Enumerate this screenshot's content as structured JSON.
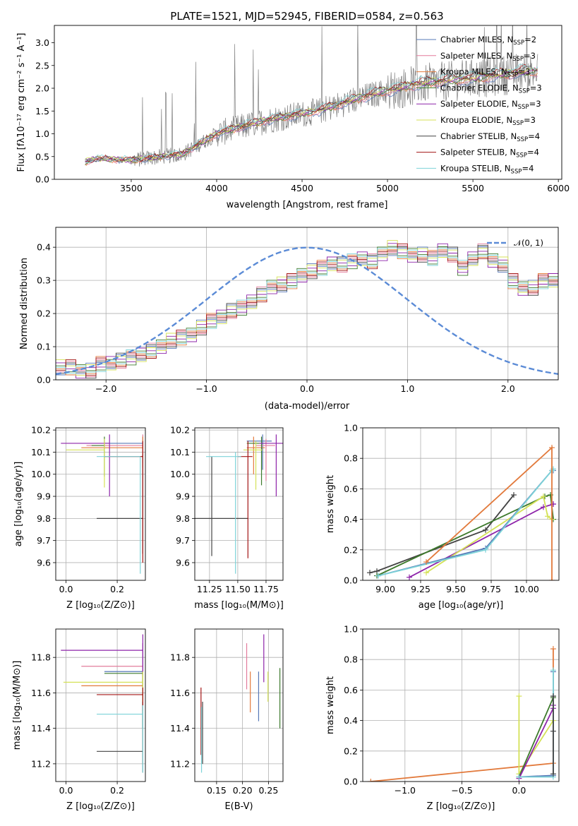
{
  "chart_data": [
    {
      "id": "spectrum",
      "type": "line",
      "title": "PLATE=1521, MJD=52945, FIBERID=0584, z=0.563",
      "xlabel": "wavelength [Angstrom, rest frame]",
      "ylabel": "Flux [fλ10⁻¹⁷ erg cm⁻² s⁻¹ A⁻¹]",
      "xlim": [
        3050,
        6020
      ],
      "ylim": [
        0,
        3.38
      ],
      "xticks": [
        3500,
        4000,
        4500,
        5000,
        5500,
        6000
      ],
      "yticks": [
        0.0,
        0.5,
        1.0,
        1.5,
        2.0,
        2.5,
        3.0
      ],
      "grid": false,
      "legend": "top-right",
      "data_trend": [
        [
          3230,
          0.38
        ],
        [
          3300,
          0.45
        ],
        [
          3500,
          0.42
        ],
        [
          3800,
          0.55
        ],
        [
          4000,
          1.0
        ],
        [
          4300,
          1.3
        ],
        [
          4600,
          1.5
        ],
        [
          4900,
          1.85
        ],
        [
          5200,
          2.1
        ],
        [
          5500,
          2.2
        ],
        [
          5800,
          2.35
        ]
      ],
      "series": [
        {
          "name": "Chabrier MILES, N$_{SSP}$=2",
          "label": "Chabrier MILES, N",
          "sub": "SSP",
          "eq": "=2",
          "color": "#5778b7"
        },
        {
          "name": "Salpeter MILES, N$_{SSP}$=3",
          "label": "Salpeter MILES, N",
          "sub": "SSP",
          "eq": "=3",
          "color": "#e37b9c"
        },
        {
          "name": "Kroupa MILES, N$_{SSP}$=3",
          "label": "Kroupa MILES, N",
          "sub": "SSP",
          "eq": "=3",
          "color": "#e27a3c"
        },
        {
          "name": "Chabrier ELODIE, N$_{SSP}$=3",
          "label": "Chabrier ELODIE, N",
          "sub": "SSP",
          "eq": "=3",
          "color": "#3d7a2c"
        },
        {
          "name": "Salpeter ELODIE, N$_{SSP}$=3",
          "label": "Salpeter ELODIE, N",
          "sub": "SSP",
          "eq": "=3",
          "color": "#8e24aa"
        },
        {
          "name": "Kroupa ELODIE, N$_{SSP}$=3",
          "label": "Kroupa ELODIE, N",
          "sub": "SSP",
          "eq": "=3",
          "color": "#d4e157"
        },
        {
          "name": "Chabrier STELIB, N$_{SSP}$=4",
          "label": "Chabrier STELIB, N",
          "sub": "SSP",
          "eq": "=4",
          "color": "#444444"
        },
        {
          "name": "Salpeter STELIB, N$_{SSP}$=4",
          "label": "Salpeter STELIB, N",
          "sub": "SSP",
          "eq": "=4",
          "color": "#a31515"
        },
        {
          "name": "Kroupa STELIB, N$_{SSP}$=4",
          "label": "Kroupa STELIB, N",
          "sub": "SSP",
          "eq": "=4",
          "color": "#7dd3d8"
        }
      ]
    },
    {
      "id": "residuals",
      "type": "histogram",
      "xlabel": "(data-model)/error",
      "ylabel": "Normed distribution",
      "xlim": [
        -2.5,
        2.5
      ],
      "ylim": [
        0,
        0.46
      ],
      "xticks": [
        -2,
        -1,
        0,
        1,
        2
      ],
      "yticks": [
        0.0,
        0.1,
        0.2,
        0.3,
        0.4
      ],
      "grid": true,
      "legend": "top-right",
      "legend_label": "𝒩(0, 1)",
      "gaussian": {
        "mean": 0,
        "sigma": 1,
        "color": "#5b8bd6"
      },
      "bin_width": 0.1,
      "base_values": [
        0.04,
        0.04,
        0.03,
        0.03,
        0.05,
        0.05,
        0.06,
        0.07,
        0.08,
        0.09,
        0.1,
        0.12,
        0.13,
        0.14,
        0.16,
        0.18,
        0.19,
        0.21,
        0.22,
        0.24,
        0.26,
        0.28,
        0.29,
        0.3,
        0.32,
        0.33,
        0.34,
        0.35,
        0.35,
        0.36,
        0.37,
        0.36,
        0.38,
        0.4,
        0.39,
        0.38,
        0.38,
        0.37,
        0.39,
        0.38,
        0.34,
        0.37,
        0.39,
        0.36,
        0.35,
        0.3,
        0.28,
        0.28,
        0.3,
        0.3,
        0.31,
        0.33,
        0.32,
        0.37,
        0.35,
        0.32,
        0.34,
        0.3,
        0.34,
        0.35,
        0.26,
        0.26,
        0.24,
        0.22,
        0.23,
        0.2,
        0.21,
        0.2,
        0.2,
        0.18,
        0.17,
        0.16,
        0.16,
        0.14,
        0.16,
        0.13,
        0.12,
        0.11,
        0.1,
        0.09,
        0.1,
        0.09,
        0.08,
        0.07,
        0.06,
        0.06,
        0.05,
        0.05,
        0.04,
        0.04,
        0.03,
        0.03,
        0.03,
        0.03,
        0.02,
        0.03,
        0.02,
        0.02,
        0.02,
        0.02
      ],
      "colors": [
        "#5778b7",
        "#e37b9c",
        "#e27a3c",
        "#3d7a2c",
        "#8e24aa",
        "#d4e157",
        "#444444",
        "#a31515",
        "#7dd3d8"
      ]
    },
    {
      "id": "age_vs_Z",
      "type": "errorbar",
      "xlabel": "Z [log₁₀(Z/Z⊙)]",
      "ylabel": "age  [log₁₀(age/yr)]",
      "xlim": [
        -0.04,
        0.31
      ],
      "ylim": [
        9.52,
        10.21
      ],
      "xticks": [
        0.0,
        0.2
      ],
      "yticks": [
        9.6,
        9.7,
        9.8,
        9.9,
        10.0,
        10.1,
        10.2
      ],
      "points": [
        {
          "x": 0.3,
          "y": 10.14,
          "xlo": 0.15,
          "ylo": 10.07,
          "yhi": 10.17,
          "color": "#5778b7"
        },
        {
          "x": 0.3,
          "y": 10.13,
          "xlo": 0.08,
          "ylo": 10.05,
          "yhi": 10.18,
          "color": "#e37b9c"
        },
        {
          "x": 0.3,
          "y": 10.12,
          "xlo": 0.06,
          "ylo": 10.03,
          "yhi": 10.17,
          "color": "#e27a3c"
        },
        {
          "x": 0.15,
          "y": 10.13,
          "xlo": 0.1,
          "ylo": 9.99,
          "yhi": 10.17,
          "color": "#3d7a2c"
        },
        {
          "x": 0.17,
          "y": 10.14,
          "xlo": -0.02,
          "ylo": 9.9,
          "yhi": 10.18,
          "color": "#8e24aa"
        },
        {
          "x": 0.15,
          "y": 10.11,
          "xlo": 0.0,
          "ylo": 9.94,
          "yhi": 10.16,
          "color": "#d4e157"
        },
        {
          "x": 0.3,
          "y": 9.8,
          "xlo": 0.12,
          "ylo": 9.64,
          "yhi": 10.09,
          "color": "#444444"
        },
        {
          "x": 0.3,
          "y": 10.08,
          "xlo": 0.15,
          "ylo": 9.6,
          "yhi": 10.15,
          "color": "#a31515"
        },
        {
          "x": 0.29,
          "y": 10.08,
          "xlo": 0.12,
          "ylo": 9.55,
          "yhi": 10.08,
          "color": "#7dd3d8"
        }
      ]
    },
    {
      "id": "age_vs_mass",
      "type": "errorbar",
      "xlabel": "mass [log₁₀(M/M⊙)]",
      "xlim": [
        11.12,
        11.9
      ],
      "ylim": [
        9.52,
        10.21
      ],
      "xticks": [
        11.25,
        11.5,
        11.75
      ],
      "xticklabels": [
        "11.25",
        "11.50",
        "11.75"
      ],
      "yticks": [
        9.6,
        9.7,
        9.8,
        9.9,
        10.0,
        10.1,
        10.2
      ],
      "points": [
        {
          "x": 11.72,
          "y": 10.15,
          "xlo": 11.58,
          "xhi": 11.8,
          "ylo": 10.02,
          "yhi": 10.18,
          "color": "#5778b7"
        },
        {
          "x": 11.75,
          "y": 10.13,
          "xlo": 11.66,
          "xhi": 11.83,
          "ylo": 9.97,
          "yhi": 10.16,
          "color": "#e37b9c"
        },
        {
          "x": 11.64,
          "y": 10.12,
          "xlo": 11.58,
          "xhi": 11.74,
          "ylo": 10.0,
          "yhi": 10.17,
          "color": "#e27a3c"
        },
        {
          "x": 11.71,
          "y": 10.14,
          "xlo": 11.58,
          "xhi": 11.75,
          "ylo": 9.95,
          "yhi": 10.17,
          "color": "#3d7a2c"
        },
        {
          "x": 11.84,
          "y": 10.14,
          "xlo": 11.69,
          "xhi": 11.93,
          "ylo": 9.9,
          "yhi": 10.18,
          "color": "#8e24aa"
        },
        {
          "x": 11.66,
          "y": 10.11,
          "xlo": 11.55,
          "xhi": 11.72,
          "ylo": 9.93,
          "yhi": 10.15,
          "color": "#d4e157"
        },
        {
          "x": 11.27,
          "y": 9.8,
          "xlo": 11.11,
          "xhi": 11.59,
          "ylo": 9.63,
          "yhi": 10.08,
          "color": "#444444"
        },
        {
          "x": 11.59,
          "y": 10.08,
          "xlo": 11.5,
          "xhi": 11.63,
          "ylo": 9.62,
          "yhi": 10.15,
          "color": "#a31515"
        },
        {
          "x": 11.48,
          "y": 10.08,
          "xlo": 11.22,
          "xhi": 11.53,
          "ylo": 9.55,
          "yhi": 10.1,
          "color": "#7dd3d8"
        }
      ]
    },
    {
      "id": "weight_vs_age",
      "type": "line",
      "xlabel": "age  [log₁₀(age/yr)]",
      "ylabel": "mass weight",
      "xlim": [
        8.84,
        10.23
      ],
      "ylim": [
        0,
        1.0
      ],
      "xticks": [
        9.0,
        9.25,
        9.5,
        9.75,
        10.0
      ],
      "xticklabels": [
        "9.00",
        "9.25",
        "9.50",
        "9.75",
        "10.00"
      ],
      "yticks": [
        0.0,
        0.2,
        0.4,
        0.6,
        0.8,
        1.0
      ],
      "series": [
        {
          "color": "#444444",
          "x": [
            8.89,
            8.94,
            9.71,
            9.91
          ],
          "y": [
            0.05,
            0.06,
            0.33,
            0.56
          ]
        },
        {
          "color": "#3d7a2c",
          "x": [
            8.94,
            10.13,
            10.17,
            10.19
          ],
          "y": [
            0.03,
            0.55,
            0.56,
            0.4
          ]
        },
        {
          "color": "#8e24aa",
          "x": [
            9.17,
            10.12,
            10.19,
            10.19
          ],
          "y": [
            0.02,
            0.48,
            0.5,
            0.5
          ]
        },
        {
          "color": "#d4e157",
          "x": [
            9.29,
            10.12,
            10.15,
            10.18
          ],
          "y": [
            0.05,
            0.55,
            0.42,
            0.4
          ]
        },
        {
          "color": "#5778b7",
          "x": [
            8.95,
            9.71,
            10.18,
            10.19
          ],
          "y": [
            0.03,
            0.21,
            0.72,
            0.72
          ]
        },
        {
          "color": "#7dd3d8",
          "x": [
            8.95,
            9.71,
            10.18,
            10.19
          ],
          "y": [
            0.03,
            0.2,
            0.72,
            0.73
          ]
        },
        {
          "color": "#e27a3c",
          "x": [
            9.29,
            10.18,
            10.18
          ],
          "y": [
            0.12,
            0.87,
            0.0
          ]
        }
      ]
    },
    {
      "id": "mass_vs_Z",
      "type": "errorbar",
      "xlabel": "Z [log₁₀(Z/Z⊙)]",
      "ylabel": "mass [log₁₀(M/M⊙)]",
      "xlim": [
        -0.04,
        0.31
      ],
      "ylim": [
        11.1,
        11.96
      ],
      "xticks": [
        0.0,
        0.2
      ],
      "yticks": [
        11.2,
        11.4,
        11.6,
        11.8
      ],
      "points": [
        {
          "x": 0.3,
          "y": 11.72,
          "xlo": 0.15,
          "ylo": 11.4,
          "yhi": 11.88,
          "color": "#5778b7"
        },
        {
          "x": 0.3,
          "y": 11.75,
          "xlo": 0.06,
          "ylo": 11.6,
          "yhi": 11.88,
          "color": "#e37b9c"
        },
        {
          "x": 0.3,
          "y": 11.64,
          "xlo": 0.06,
          "ylo": 11.2,
          "yhi": 11.72,
          "color": "#e27a3c"
        },
        {
          "x": 0.3,
          "y": 11.71,
          "xlo": 0.15,
          "ylo": 11.4,
          "yhi": 11.72,
          "color": "#3d7a2c"
        },
        {
          "x": 0.3,
          "y": 11.84,
          "xlo": -0.02,
          "ylo": 11.7,
          "yhi": 11.93,
          "color": "#8e24aa"
        },
        {
          "x": 0.3,
          "y": 11.66,
          "xlo": -0.01,
          "ylo": 11.55,
          "yhi": 11.72,
          "color": "#d4e157"
        },
        {
          "x": 0.3,
          "y": 11.27,
          "xlo": 0.12,
          "ylo": 11.15,
          "yhi": 11.55,
          "color": "#444444"
        },
        {
          "x": 0.3,
          "y": 11.59,
          "xlo": 0.12,
          "ylo": 11.5,
          "yhi": 11.63,
          "color": "#a31515"
        },
        {
          "x": 0.3,
          "y": 11.48,
          "xlo": 0.12,
          "ylo": 11.15,
          "yhi": 11.53,
          "color": "#7dd3d8"
        }
      ]
    },
    {
      "id": "mass_vs_EBV",
      "type": "errorbar",
      "xlabel": "E(B-V)",
      "xlim": [
        0.108,
        0.278
      ],
      "ylim": [
        11.1,
        11.96
      ],
      "xticks": [
        0.15,
        0.2,
        0.25
      ],
      "xticklabels": [
        "0.15",
        "0.20",
        "0.25"
      ],
      "yticks": [
        11.2,
        11.4,
        11.6,
        11.8
      ],
      "points": [
        {
          "x": 0.231,
          "y": 11.64,
          "ylo": 11.44,
          "yhi": 11.72,
          "color": "#5778b7"
        },
        {
          "x": 0.208,
          "y": 11.75,
          "ylo": 11.62,
          "yhi": 11.88,
          "color": "#e37b9c"
        },
        {
          "x": 0.215,
          "y": 11.62,
          "ylo": 11.49,
          "yhi": 11.72,
          "color": "#e27a3c"
        },
        {
          "x": 0.272,
          "y": 11.56,
          "ylo": 11.4,
          "yhi": 11.74,
          "color": "#3d7a2c"
        },
        {
          "x": 0.241,
          "y": 11.84,
          "ylo": 11.66,
          "yhi": 11.93,
          "color": "#8e24aa"
        },
        {
          "x": 0.249,
          "y": 11.66,
          "ylo": 11.55,
          "yhi": 11.72,
          "color": "#d4e157"
        },
        {
          "x": 0.123,
          "y": 11.38,
          "ylo": 11.2,
          "yhi": 11.55,
          "color": "#444444"
        },
        {
          "x": 0.12,
          "y": 11.44,
          "ylo": 11.25,
          "yhi": 11.63,
          "color": "#a31515"
        },
        {
          "x": 0.121,
          "y": 11.3,
          "ylo": 11.15,
          "yhi": 11.52,
          "color": "#7dd3d8"
        }
      ]
    },
    {
      "id": "weight_vs_Z",
      "type": "line",
      "xlabel": "Z [log₁₀(Z/Z⊙)]",
      "ylabel": "mass weight",
      "xlim": [
        -1.37,
        0.35
      ],
      "ylim": [
        0,
        1.0
      ],
      "xticks": [
        -1.0,
        -0.5,
        0.0
      ],
      "xticklabels": [
        "−1.0",
        "−0.5",
        "0.0"
      ],
      "yticks": [
        0.0,
        0.2,
        0.4,
        0.6,
        0.8,
        1.0
      ],
      "series": [
        {
          "color": "#e27a3c",
          "x": [
            -1.3,
            0.3,
            0.3
          ],
          "y": [
            0.0,
            0.12,
            0.87
          ]
        },
        {
          "color": "#d4e157",
          "x": [
            0.0,
            0.0,
            0.3
          ],
          "y": [
            0.56,
            0.05,
            0.4
          ]
        },
        {
          "color": "#3d7a2c",
          "x": [
            0.0,
            0.3,
            0.3
          ],
          "y": [
            0.03,
            0.55,
            0.56
          ]
        },
        {
          "color": "#8e24aa",
          "x": [
            0.0,
            0.3,
            0.3
          ],
          "y": [
            0.02,
            0.48,
            0.5
          ]
        },
        {
          "color": "#5778b7",
          "x": [
            0.0,
            0.3,
            0.3
          ],
          "y": [
            0.03,
            0.04,
            0.72
          ]
        },
        {
          "color": "#7dd3d8",
          "x": [
            0.0,
            0.3,
            0.3
          ],
          "y": [
            0.03,
            0.03,
            0.73
          ]
        },
        {
          "color": "#444444",
          "x": [
            0.3,
            0.3,
            0.3
          ],
          "y": [
            0.05,
            0.33,
            0.56
          ]
        }
      ]
    }
  ]
}
